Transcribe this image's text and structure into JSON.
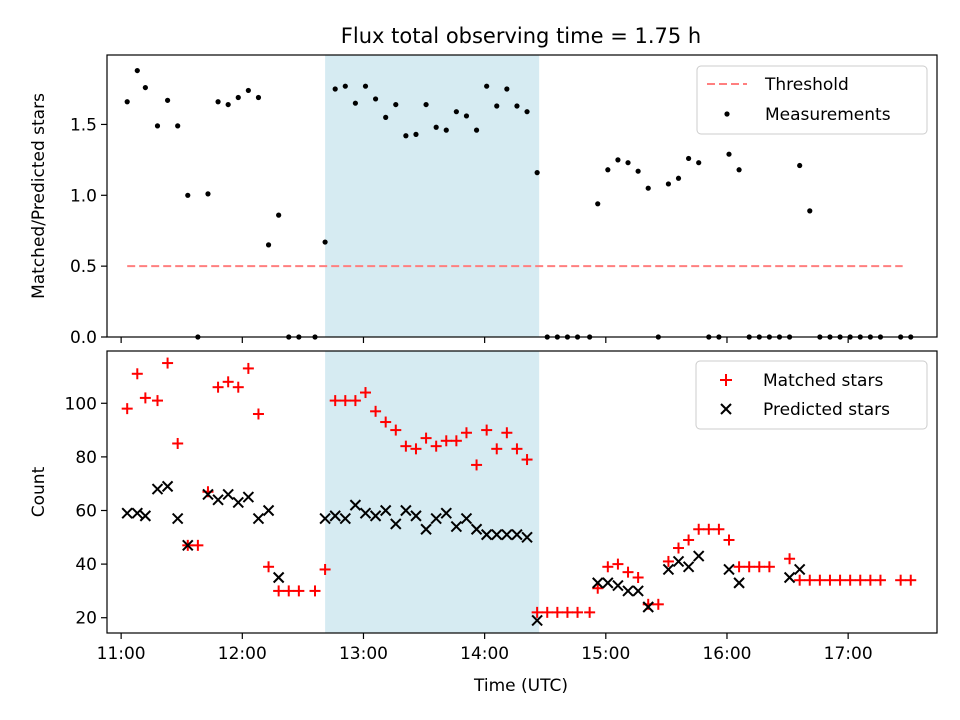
{
  "chart_data": [
    {
      "type": "scatter",
      "title": "Flux total observing time = 1.75 h",
      "ylabel": "Matched/Predicted stars",
      "xlabel": "",
      "xlim": [
        "10:53",
        "17:44"
      ],
      "ylim": [
        0,
        1.99
      ],
      "yticks": [
        "0.0",
        "0.5",
        "1.0",
        "1.5"
      ],
      "shaded_region": {
        "start": "12:41",
        "end": "14:27"
      },
      "legend": {
        "position": "top-right",
        "entries": [
          "Threshold",
          "Measurements"
        ]
      },
      "threshold": {
        "name": "Threshold",
        "value": 0.5,
        "x_start": "11:03",
        "x_end": "17:27",
        "color": "#ff7f7f",
        "style": "dashed"
      },
      "series": [
        {
          "name": "Measurements",
          "marker": "dot",
          "color": "#000000",
          "points": [
            [
              "11:03",
              1.66
            ],
            [
              "11:08",
              1.88
            ],
            [
              "11:12",
              1.76
            ],
            [
              "11:18",
              1.49
            ],
            [
              "11:23",
              1.67
            ],
            [
              "11:28",
              1.49
            ],
            [
              "11:33",
              1.0
            ],
            [
              "11:38",
              0.0
            ],
            [
              "11:43",
              1.01
            ],
            [
              "11:48",
              1.66
            ],
            [
              "11:53",
              1.64
            ],
            [
              "11:58",
              1.69
            ],
            [
              "12:03",
              1.74
            ],
            [
              "12:08",
              1.69
            ],
            [
              "12:13",
              0.65
            ],
            [
              "12:18",
              0.86
            ],
            [
              "12:23",
              0.0
            ],
            [
              "12:28",
              0.0
            ],
            [
              "12:36",
              0.0
            ],
            [
              "12:41",
              0.67
            ],
            [
              "12:46",
              1.75
            ],
            [
              "12:51",
              1.77
            ],
            [
              "12:56",
              1.65
            ],
            [
              "13:01",
              1.77
            ],
            [
              "13:06",
              1.68
            ],
            [
              "13:11",
              1.55
            ],
            [
              "13:16",
              1.64
            ],
            [
              "13:21",
              1.42
            ],
            [
              "13:26",
              1.43
            ],
            [
              "13:31",
              1.64
            ],
            [
              "13:36",
              1.48
            ],
            [
              "13:41",
              1.46
            ],
            [
              "13:46",
              1.59
            ],
            [
              "13:51",
              1.56
            ],
            [
              "13:56",
              1.46
            ],
            [
              "14:01",
              1.77
            ],
            [
              "14:06",
              1.63
            ],
            [
              "14:11",
              1.75
            ],
            [
              "14:16",
              1.63
            ],
            [
              "14:21",
              1.59
            ],
            [
              "14:26",
              1.16
            ],
            [
              "14:31",
              0.0
            ],
            [
              "14:36",
              0.0
            ],
            [
              "14:41",
              0.0
            ],
            [
              "14:46",
              0.0
            ],
            [
              "14:52",
              0.0
            ],
            [
              "14:56",
              0.94
            ],
            [
              "15:01",
              1.18
            ],
            [
              "15:06",
              1.25
            ],
            [
              "15:11",
              1.23
            ],
            [
              "15:16",
              1.17
            ],
            [
              "15:21",
              1.05
            ],
            [
              "15:26",
              0.0
            ],
            [
              "15:31",
              1.08
            ],
            [
              "15:36",
              1.12
            ],
            [
              "15:41",
              1.26
            ],
            [
              "15:46",
              1.23
            ],
            [
              "15:51",
              0.0
            ],
            [
              "15:56",
              0.0
            ],
            [
              "16:01",
              1.29
            ],
            [
              "16:06",
              1.18
            ],
            [
              "16:11",
              0.0
            ],
            [
              "16:16",
              0.0
            ],
            [
              "16:21",
              0.0
            ],
            [
              "16:26",
              0.0
            ],
            [
              "16:31",
              0.0
            ],
            [
              "16:36",
              1.21
            ],
            [
              "16:41",
              0.89
            ],
            [
              "16:46",
              0.0
            ],
            [
              "16:51",
              0.0
            ],
            [
              "16:56",
              0.0
            ],
            [
              "17:01",
              0.0
            ],
            [
              "17:06",
              0.0
            ],
            [
              "17:11",
              0.0
            ],
            [
              "17:16",
              0.0
            ],
            [
              "17:26",
              0.0
            ],
            [
              "17:31",
              0.0
            ]
          ]
        }
      ]
    },
    {
      "type": "scatter",
      "title": "",
      "ylabel": "Count",
      "xlabel": "Time (UTC)",
      "xlim": [
        "10:53",
        "17:44"
      ],
      "ylim": [
        14.3,
        119.5
      ],
      "yticks": [
        "20",
        "40",
        "60",
        "80",
        "100"
      ],
      "xticks": [
        "11:00",
        "12:00",
        "13:00",
        "14:00",
        "15:00",
        "16:00",
        "17:00"
      ],
      "shaded_region": {
        "start": "12:41",
        "end": "14:27"
      },
      "legend": {
        "position": "top-right",
        "entries": [
          "Matched stars",
          "Predicted stars"
        ]
      },
      "series": [
        {
          "name": "Matched stars",
          "marker": "plus",
          "color": "#ff0000",
          "points": [
            [
              "11:03",
              98
            ],
            [
              "11:08",
              111
            ],
            [
              "11:12",
              102
            ],
            [
              "11:18",
              101
            ],
            [
              "11:23",
              115
            ],
            [
              "11:28",
              85
            ],
            [
              "11:33",
              47
            ],
            [
              "11:38",
              47
            ],
            [
              "11:43",
              67
            ],
            [
              "11:48",
              106
            ],
            [
              "11:53",
              108
            ],
            [
              "11:58",
              106
            ],
            [
              "12:03",
              113
            ],
            [
              "12:08",
              96
            ],
            [
              "12:13",
              39
            ],
            [
              "12:18",
              30
            ],
            [
              "12:23",
              30
            ],
            [
              "12:28",
              30
            ],
            [
              "12:36",
              30
            ],
            [
              "12:41",
              38
            ],
            [
              "12:46",
              101
            ],
            [
              "12:51",
              101
            ],
            [
              "12:56",
              101
            ],
            [
              "13:01",
              104
            ],
            [
              "13:06",
              97
            ],
            [
              "13:11",
              93
            ],
            [
              "13:16",
              90
            ],
            [
              "13:21",
              84
            ],
            [
              "13:26",
              83
            ],
            [
              "13:31",
              87
            ],
            [
              "13:36",
              84
            ],
            [
              "13:41",
              86
            ],
            [
              "13:46",
              86
            ],
            [
              "13:51",
              89
            ],
            [
              "13:56",
              77
            ],
            [
              "14:01",
              90
            ],
            [
              "14:06",
              83
            ],
            [
              "14:11",
              89
            ],
            [
              "14:16",
              83
            ],
            [
              "14:21",
              79
            ],
            [
              "14:26",
              22
            ],
            [
              "14:31",
              22
            ],
            [
              "14:36",
              22
            ],
            [
              "14:41",
              22
            ],
            [
              "14:46",
              22
            ],
            [
              "14:52",
              22
            ],
            [
              "14:56",
              31
            ],
            [
              "15:01",
              39
            ],
            [
              "15:06",
              40
            ],
            [
              "15:11",
              37
            ],
            [
              "15:16",
              35
            ],
            [
              "15:21",
              25
            ],
            [
              "15:26",
              25
            ],
            [
              "15:31",
              41
            ],
            [
              "15:36",
              46
            ],
            [
              "15:41",
              49
            ],
            [
              "15:46",
              53
            ],
            [
              "15:51",
              53
            ],
            [
              "15:56",
              53
            ],
            [
              "16:01",
              49
            ],
            [
              "16:06",
              39
            ],
            [
              "16:11",
              39
            ],
            [
              "16:16",
              39
            ],
            [
              "16:21",
              39
            ],
            [
              "16:31",
              42
            ],
            [
              "16:36",
              34
            ],
            [
              "16:41",
              34
            ],
            [
              "16:46",
              34
            ],
            [
              "16:51",
              34
            ],
            [
              "16:56",
              34
            ],
            [
              "17:01",
              34
            ],
            [
              "17:06",
              34
            ],
            [
              "17:11",
              34
            ],
            [
              "17:16",
              34
            ],
            [
              "17:26",
              34
            ],
            [
              "17:31",
              34
            ]
          ]
        },
        {
          "name": "Predicted stars",
          "marker": "x",
          "color": "#000000",
          "points": [
            [
              "11:03",
              59
            ],
            [
              "11:08",
              59
            ],
            [
              "11:12",
              58
            ],
            [
              "11:18",
              68
            ],
            [
              "11:23",
              69
            ],
            [
              "11:28",
              57
            ],
            [
              "11:33",
              47
            ],
            [
              "11:43",
              66
            ],
            [
              "11:48",
              64
            ],
            [
              "11:53",
              66
            ],
            [
              "11:58",
              63
            ],
            [
              "12:03",
              65
            ],
            [
              "12:08",
              57
            ],
            [
              "12:13",
              60
            ],
            [
              "12:18",
              35
            ],
            [
              "12:41",
              57
            ],
            [
              "12:46",
              58
            ],
            [
              "12:51",
              57
            ],
            [
              "12:56",
              62
            ],
            [
              "13:01",
              59
            ],
            [
              "13:06",
              58
            ],
            [
              "13:11",
              60
            ],
            [
              "13:16",
              55
            ],
            [
              "13:21",
              60
            ],
            [
              "13:26",
              58
            ],
            [
              "13:31",
              53
            ],
            [
              "13:36",
              57
            ],
            [
              "13:41",
              59
            ],
            [
              "13:46",
              54
            ],
            [
              "13:51",
              57
            ],
            [
              "13:56",
              53
            ],
            [
              "14:01",
              51
            ],
            [
              "14:06",
              51
            ],
            [
              "14:11",
              51
            ],
            [
              "14:16",
              51
            ],
            [
              "14:21",
              50
            ],
            [
              "14:26",
              19
            ],
            [
              "14:56",
              33
            ],
            [
              "15:01",
              33
            ],
            [
              "15:06",
              32
            ],
            [
              "15:11",
              30
            ],
            [
              "15:16",
              30
            ],
            [
              "15:21",
              24
            ],
            [
              "15:31",
              38
            ],
            [
              "15:36",
              41
            ],
            [
              "15:41",
              39
            ],
            [
              "15:46",
              43
            ],
            [
              "16:01",
              38
            ],
            [
              "16:06",
              33
            ],
            [
              "16:31",
              35
            ],
            [
              "16:36",
              38
            ]
          ]
        }
      ]
    }
  ]
}
